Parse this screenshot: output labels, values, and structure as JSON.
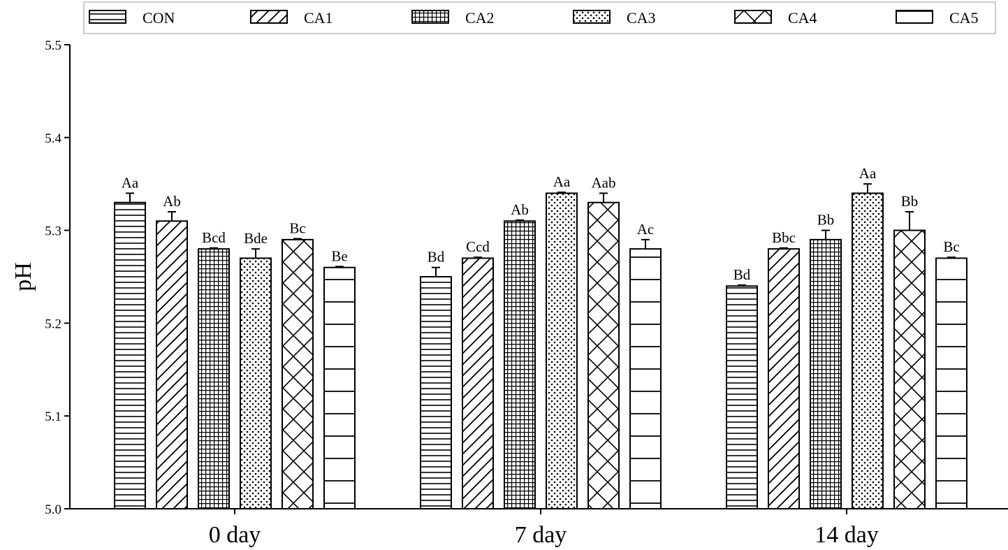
{
  "chart_data": {
    "type": "bar",
    "title": "",
    "xlabel": "",
    "ylabel": "pH",
    "ylim": [
      5.0,
      5.5
    ],
    "yticks": [
      "5.0",
      "5.1",
      "5.2",
      "5.3",
      "5.4",
      "5.5"
    ],
    "categories": [
      "0 day",
      "7 day",
      "14 day"
    ],
    "grid": false,
    "legend_position": "top",
    "error_bars": "upper only",
    "series": [
      {
        "name": "CON",
        "pattern": "horizontal-lines-dense",
        "values": [
          5.33,
          5.25,
          5.24
        ],
        "errors": [
          0.01,
          0.01,
          0.001
        ],
        "labels": [
          "Aa",
          "Bd",
          "Bd"
        ]
      },
      {
        "name": "CA1",
        "pattern": "diagonal-lines",
        "values": [
          5.31,
          5.27,
          5.28
        ],
        "errors": [
          0.01,
          0.001,
          0.001
        ],
        "labels": [
          "Ab",
          "Ccd",
          "Bbc"
        ]
      },
      {
        "name": "CA2",
        "pattern": "grid",
        "values": [
          5.28,
          5.31,
          5.29
        ],
        "errors": [
          0.001,
          0.001,
          0.01
        ],
        "labels": [
          "Bcd",
          "Ab",
          "Bb"
        ]
      },
      {
        "name": "CA3",
        "pattern": "dots",
        "values": [
          5.27,
          5.34,
          5.34
        ],
        "errors": [
          0.01,
          0.001,
          0.01
        ],
        "labels": [
          "Bde",
          "Aa",
          "Aa"
        ]
      },
      {
        "name": "CA4",
        "pattern": "crosshatch",
        "values": [
          5.29,
          5.33,
          5.3
        ],
        "errors": [
          0.001,
          0.01,
          0.02
        ],
        "labels": [
          "Bc",
          "Aab",
          "Bb"
        ]
      },
      {
        "name": "CA5",
        "pattern": "horizontal-lines-sparse",
        "values": [
          5.26,
          5.28,
          5.27
        ],
        "errors": [
          0.001,
          0.01,
          0.001
        ],
        "labels": [
          "Be",
          "Ac",
          "Bc"
        ]
      }
    ]
  }
}
